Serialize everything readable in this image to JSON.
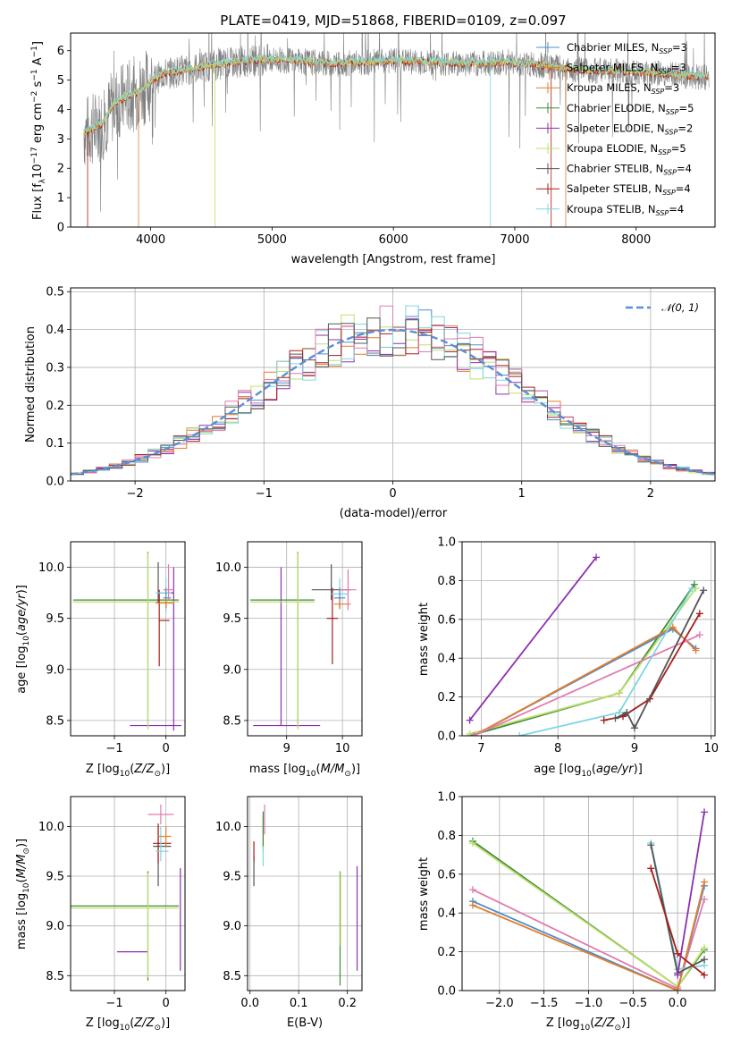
{
  "title": "PLATE=0419, MJD=51868, FIBERID=0109, z=0.097",
  "colors": {
    "Chabrier MILES": "#4c8dcc",
    "Salpeter MILES": "#e57c2a",
    "Kroupa MILES": "#e57c2a",
    "Chabrier ELODIE": "#3d8a3d",
    "Salpeter ELODIE": "#8e2fb0",
    "Kroupa ELODIE": "#bfe06a",
    "Chabrier STELIB": "#555555",
    "Salpeter STELIB": "#a61d1d",
    "Kroupa STELIB": "#7fd6e0",
    "pink": "#e07bb0",
    "normal": "#5b8fd6"
  },
  "panel_labels": {
    "spectrum": {
      "xlabel": "wavelength [Angstrom, rest frame]",
      "ylabel": "Flux [f",
      "ylabel_sub": "λ",
      "ylabel_rest": "10",
      "ylabel_exp": "−17",
      "ylabel_tail": " erg cm",
      "ylabel_exp2": "−2",
      "ylabel_tail2": " s",
      "ylabel_exp3": "−1",
      "ylabel_tail3": " A",
      "ylabel_exp4": "−1",
      "ylabel_end": "]"
    },
    "residuals": {
      "xlabel": "(data-model)/error",
      "ylabel": "Normed distribution",
      "legend": "𝒩(0, 1)"
    },
    "age_z": {
      "xlabel": "Z [log",
      "xlabel_sub": "10",
      "xlabel_rest": "(Z/Z",
      "xlabel_sun": "⊙",
      "xlabel_end": ")]",
      "ylabel": "age  [log",
      "ylabel_sub": "10",
      "ylabel_rest": "(age/yr)]"
    },
    "age_mass": {
      "xlabel": "mass [log",
      "xlabel_sub": "10",
      "xlabel_rest": "(M/M",
      "xlabel_sun": "⊙",
      "xlabel_end": ")]"
    },
    "mw_age": {
      "xlabel": "age  [log",
      "xlabel_sub": "10",
      "xlabel_rest": "(age/yr)]",
      "ylabel": "mass weight"
    },
    "mass_z": {
      "xlabel": "Z [log",
      "xlabel_sub": "10",
      "xlabel_rest": "(Z/Z",
      "xlabel_sun": "⊙",
      "xlabel_end": ")]",
      "ylabel": "mass [log",
      "ylabel_sub": "10",
      "ylabel_rest": "(M/M",
      "ylabel_sun": "⊙",
      "ylabel_end": ")]"
    },
    "mass_ebv": {
      "xlabel": "E(B-V)"
    },
    "mw_z": {
      "xlabel": "Z [log",
      "xlabel_sub": "10",
      "xlabel_rest": "(Z/Z",
      "xlabel_sun": "⊙",
      "xlabel_end": ")]",
      "ylabel": "mass weight"
    }
  },
  "chart_data": [
    {
      "type": "line",
      "xlim": [
        3340,
        8650
      ],
      "ylim": [
        0,
        6.6
      ],
      "xticks": [
        4000,
        5000,
        6000,
        7000,
        8000
      ],
      "yticks": [
        0,
        1,
        2,
        3,
        4,
        5,
        6
      ],
      "grid": false,
      "legend_position": "right",
      "legend": [
        {
          "name": "Chabrier MILES",
          "nssp": "3"
        },
        {
          "name": "Salpeter MILES",
          "nssp": "3"
        },
        {
          "name": "Kroupa MILES",
          "nssp": "3"
        },
        {
          "name": "Chabrier ELODIE",
          "nssp": "5"
        },
        {
          "name": "Salpeter ELODIE",
          "nssp": "2"
        },
        {
          "name": "Kroupa ELODIE",
          "nssp": "5"
        },
        {
          "name": "Chabrier STELIB",
          "nssp": "4"
        },
        {
          "name": "Salpeter STELIB",
          "nssp": "4"
        },
        {
          "name": "Kroupa STELIB",
          "nssp": "4"
        }
      ],
      "continuum": {
        "x": [
          3450,
          3600,
          3700,
          3800,
          3900,
          4000,
          4100,
          4300,
          4500,
          4800,
          5000,
          5200,
          5500,
          5800,
          6000,
          6300,
          6600,
          6900,
          7200,
          7500,
          7800,
          8100,
          8400,
          8600
        ],
        "y": [
          3.2,
          3.5,
          4.2,
          4.4,
          4.6,
          4.9,
          5.2,
          5.35,
          5.5,
          5.65,
          5.7,
          5.65,
          5.55,
          5.6,
          5.65,
          5.6,
          5.55,
          5.6,
          5.5,
          5.35,
          5.3,
          5.25,
          5.15,
          5.1
        ]
      }
    },
    {
      "type": "bar",
      "xlim": [
        -2.5,
        2.5
      ],
      "ylim": [
        0,
        0.51
      ],
      "xticks": [
        -2,
        -1,
        0,
        1,
        2
      ],
      "yticks": [
        0.0,
        0.1,
        0.2,
        0.3,
        0.4,
        0.5
      ],
      "grid": true,
      "legend_position": "top-right",
      "bin_width": 0.1,
      "normal_mean": 0,
      "normal_sigma": 1
    },
    {
      "type": "scatter",
      "xlim": [
        -1.85,
        0.37
      ],
      "ylim": [
        8.35,
        10.25
      ],
      "xticks": [
        -1,
        0
      ],
      "yticks": [
        8.5,
        9.0,
        9.5,
        10.0
      ],
      "grid": true,
      "points": [
        {
          "model": "Salpeter ELODIE",
          "x": -0.35,
          "xerr": [
            0.35,
            0.65
          ],
          "y": 8.45,
          "yerr": [
            0.0,
            0.0
          ]
        },
        {
          "model": "Salpeter ELODIE",
          "x": 0.15,
          "xerr": [
            0.0,
            0.0
          ],
          "y": 9.2,
          "yerr": [
            0.8,
            0.8
          ]
        },
        {
          "model": "Chabrier ELODIE",
          "x": -0.35,
          "xerr": [
            1.45,
            0.6
          ],
          "y": 9.68,
          "yerr": [
            1.25,
            0.47
          ]
        },
        {
          "model": "Kroupa ELODIE",
          "x": -0.35,
          "xerr": [
            1.45,
            0.6
          ],
          "y": 9.66,
          "yerr": [
            1.25,
            0.48
          ]
        },
        {
          "model": "Chabrier STELIB",
          "x": -0.15,
          "xerr": [
            0.0,
            0.3
          ],
          "y": 9.75,
          "yerr": [
            0.1,
            0.3
          ]
        },
        {
          "model": "Salpeter STELIB",
          "x": -0.13,
          "xerr": [
            0.0,
            0.2
          ],
          "y": 9.48,
          "yerr": [
            0.45,
            0.3
          ]
        },
        {
          "model": "Kroupa STELIB",
          "x": 0.0,
          "xerr": [
            0.2,
            0.1
          ],
          "y": 9.75,
          "yerr": [
            0.2,
            0.15
          ]
        },
        {
          "model": "Chabrier MILES",
          "x": 0.0,
          "xerr": [
            0.05,
            0.1
          ],
          "y": 9.7,
          "yerr": [
            0.1,
            0.1
          ]
        },
        {
          "model": "Salpeter MILES",
          "x": 0.0,
          "xerr": [
            0.2,
            0.15
          ],
          "y": 9.65,
          "yerr": [
            0.05,
            0.05
          ]
        },
        {
          "model": "pink",
          "x": 0.05,
          "xerr": [
            0.1,
            0.1
          ],
          "y": 9.78,
          "yerr": [
            0.1,
            0.25
          ]
        }
      ]
    },
    {
      "type": "scatter",
      "xlim": [
        8.3,
        10.35
      ],
      "ylim": [
        8.35,
        10.25
      ],
      "xticks": [
        9,
        10
      ],
      "yticks": [
        8.5,
        9.0,
        9.5,
        10.0
      ],
      "grid": true,
      "points": [
        {
          "model": "Salpeter ELODIE",
          "x": 8.9,
          "xerr": [
            0.5,
            0.7
          ],
          "y": 8.45,
          "yerr": [
            0.0,
            1.55
          ]
        },
        {
          "model": "Chabrier ELODIE",
          "x": 9.2,
          "xerr": [
            0.85,
            0.3
          ],
          "y": 9.68,
          "yerr": [
            1.25,
            0.47
          ]
        },
        {
          "model": "Kroupa ELODIE",
          "x": 9.2,
          "xerr": [
            0.85,
            0.3
          ],
          "y": 9.66,
          "yerr": [
            1.25,
            0.48
          ]
        },
        {
          "model": "Chabrier STELIB",
          "x": 9.8,
          "xerr": [
            0.35,
            0.35
          ],
          "y": 9.78,
          "yerr": [
            0.1,
            0.25
          ]
        },
        {
          "model": "Salpeter STELIB",
          "x": 9.82,
          "xerr": [
            0.1,
            0.1
          ],
          "y": 9.5,
          "yerr": [
            0.45,
            0.3
          ]
        },
        {
          "model": "Kroupa STELIB",
          "x": 9.95,
          "xerr": [
            0.15,
            0.15
          ],
          "y": 9.74,
          "yerr": [
            0.15,
            0.15
          ]
        },
        {
          "model": "Chabrier MILES",
          "x": 9.95,
          "xerr": [
            0.1,
            0.1
          ],
          "y": 9.7,
          "yerr": [
            0.1,
            0.1
          ]
        },
        {
          "model": "Salpeter MILES",
          "x": 9.95,
          "xerr": [
            0.1,
            0.2
          ],
          "y": 9.64,
          "yerr": [
            0.05,
            0.05
          ]
        },
        {
          "model": "pink",
          "x": 10.1,
          "xerr": [
            0.15,
            0.15
          ],
          "y": 9.78,
          "yerr": [
            0.2,
            0.2
          ]
        }
      ]
    },
    {
      "type": "line",
      "xlim": [
        6.75,
        10.05
      ],
      "ylim": [
        0,
        1.0
      ],
      "xticks": [
        7,
        8,
        9,
        10
      ],
      "yticks": [
        0.0,
        0.2,
        0.4,
        0.6,
        0.8,
        1.0
      ],
      "grid": true,
      "series": [
        {
          "model": "Salpeter ELODIE",
          "x": [
            6.85,
            8.5
          ],
          "y": [
            0.08,
            0.92
          ]
        },
        {
          "model": "Chabrier ELODIE",
          "x": [
            6.85,
            8.8,
            9.78
          ],
          "y": [
            0.0,
            0.22,
            0.78
          ]
        },
        {
          "model": "Kroupa ELODIE",
          "x": [
            6.85,
            8.8,
            9.8
          ],
          "y": [
            0.01,
            0.22,
            0.76
          ]
        },
        {
          "model": "Chabrier MILES",
          "x": [
            6.9,
            9.5,
            9.8
          ],
          "y": [
            0.0,
            0.55,
            0.45
          ]
        },
        {
          "model": "Salpeter MILES",
          "x": [
            6.9,
            9.5,
            9.8
          ],
          "y": [
            0.0,
            0.56,
            0.44
          ]
        },
        {
          "model": "pink",
          "x": [
            6.9,
            9.85
          ],
          "y": [
            0.0,
            0.52
          ]
        },
        {
          "model": "Kroupa STELIB",
          "x": [
            7.5,
            8.8,
            9.75
          ],
          "y": [
            0.0,
            0.12,
            0.76
          ]
        },
        {
          "model": "Salpeter STELIB",
          "x": [
            8.6,
            8.85,
            9.2,
            9.85
          ],
          "y": [
            0.08,
            0.1,
            0.19,
            0.63
          ]
        },
        {
          "model": "Chabrier STELIB",
          "x": [
            8.75,
            8.9,
            9.0,
            9.9
          ],
          "y": [
            0.09,
            0.12,
            0.04,
            0.75
          ]
        }
      ]
    },
    {
      "type": "scatter",
      "xlim": [
        -1.85,
        0.37
      ],
      "ylim": [
        8.35,
        10.3
      ],
      "xticks": [
        -1,
        0
      ],
      "yticks": [
        8.5,
        9.0,
        9.5,
        10.0
      ],
      "grid": true,
      "points": [
        {
          "model": "Salpeter ELODIE",
          "x": -0.35,
          "xerr": [
            0.6,
            0.0
          ],
          "y": 8.74,
          "yerr": [
            0.0,
            0.0
          ]
        },
        {
          "model": "Salpeter ELODIE",
          "x": 0.28,
          "xerr": [
            0.0,
            0.0
          ],
          "y": 9.2,
          "yerr": [
            0.65,
            0.38
          ]
        },
        {
          "model": "Chabrier ELODIE",
          "x": -0.35,
          "xerr": [
            1.5,
            0.6
          ],
          "y": 9.2,
          "yerr": [
            0.75,
            0.35
          ]
        },
        {
          "model": "Kroupa ELODIE",
          "x": -0.35,
          "xerr": [
            1.5,
            0.6
          ],
          "y": 9.18,
          "yerr": [
            0.7,
            0.35
          ]
        },
        {
          "model": "Chabrier STELIB",
          "x": -0.15,
          "xerr": [
            0.1,
            0.25
          ],
          "y": 9.8,
          "yerr": [
            0.4,
            0.2
          ]
        },
        {
          "model": "Salpeter STELIB",
          "x": -0.15,
          "xerr": [
            0.1,
            0.25
          ],
          "y": 9.83,
          "yerr": [
            0.2,
            0.2
          ]
        },
        {
          "model": "Kroupa STELIB",
          "x": -0.1,
          "xerr": [
            0.1,
            0.15
          ],
          "y": 9.75,
          "yerr": [
            0.1,
            0.25
          ]
        },
        {
          "model": "Salpeter MILES",
          "x": 0.0,
          "xerr": [
            0.15,
            0.1
          ],
          "y": 9.9,
          "yerr": [
            0.1,
            0.1
          ]
        },
        {
          "model": "pink",
          "x": -0.1,
          "xerr": [
            0.25,
            0.25
          ],
          "y": 10.12,
          "yerr": [
            0.1,
            0.1
          ]
        }
      ]
    },
    {
      "type": "scatter",
      "xlim": [
        -0.005,
        0.23
      ],
      "ylim": [
        8.35,
        10.3
      ],
      "xticks": [
        0.0,
        0.1,
        0.2
      ],
      "yticks": [
        8.5,
        9.0,
        9.5,
        10.0
      ],
      "grid": true,
      "points": [
        {
          "model": "Chabrier STELIB",
          "x": 0.008,
          "xerr": [
            0,
            0
          ],
          "y": 9.55,
          "yerr": [
            0.15,
            0.15
          ]
        },
        {
          "model": "Salpeter STELIB",
          "x": 0.008,
          "xerr": [
            0,
            0
          ],
          "y": 9.75,
          "yerr": [
            0.1,
            0.1
          ]
        },
        {
          "model": "Salpeter MILES",
          "x": 0.027,
          "xerr": [
            0,
            0
          ],
          "y": 9.95,
          "yerr": [
            0.15,
            0.15
          ]
        },
        {
          "model": "Chabrier ELODIE",
          "x": 0.027,
          "xerr": [
            0,
            0
          ],
          "y": 9.95,
          "yerr": [
            0.2,
            0.2
          ]
        },
        {
          "model": "Kroupa STELIB",
          "x": 0.027,
          "xerr": [
            0,
            0
          ],
          "y": 9.7,
          "yerr": [
            0.1,
            0.1
          ]
        },
        {
          "model": "pink",
          "x": 0.03,
          "xerr": [
            0,
            0
          ],
          "y": 10.07,
          "yerr": [
            0.15,
            0.15
          ]
        },
        {
          "model": "Chabrier ELODIE",
          "x": 0.185,
          "xerr": [
            0,
            0
          ],
          "y": 9.0,
          "yerr": [
            0.6,
            0.55
          ]
        },
        {
          "model": "Kroupa ELODIE",
          "x": 0.186,
          "xerr": [
            0,
            0
          ],
          "y": 9.2,
          "yerr": [
            0.4,
            0.35
          ]
        },
        {
          "model": "Salpeter ELODIE",
          "x": 0.22,
          "xerr": [
            0,
            0
          ],
          "y": 9.05,
          "yerr": [
            0.5,
            0.55
          ]
        }
      ]
    },
    {
      "type": "line",
      "xlim": [
        -2.42,
        0.42
      ],
      "ylim": [
        0,
        1.0
      ],
      "xticks": [
        -2.0,
        -1.5,
        -1.0,
        -0.5,
        0.0
      ],
      "yticks": [
        0.0,
        0.2,
        0.4,
        0.6,
        0.8,
        1.0
      ],
      "grid": true,
      "series": [
        {
          "model": "Chabrier ELODIE",
          "x": [
            -2.3,
            0.0,
            0.3
          ],
          "y": [
            0.77,
            0.02,
            0.21
          ]
        },
        {
          "model": "Kroupa ELODIE",
          "x": [
            -2.3,
            0.0,
            0.3
          ],
          "y": [
            0.76,
            0.02,
            0.22
          ]
        },
        {
          "model": "pink",
          "x": [
            -2.3,
            0.0,
            0.3
          ],
          "y": [
            0.52,
            0.01,
            0.47
          ]
        },
        {
          "model": "Chabrier MILES",
          "x": [
            -2.3,
            0.0,
            0.3
          ],
          "y": [
            0.46,
            0.0,
            0.54
          ]
        },
        {
          "model": "Salpeter MILES",
          "x": [
            -2.3,
            0.0,
            0.3
          ],
          "y": [
            0.44,
            0.0,
            0.56
          ]
        },
        {
          "model": "Kroupa STELIB",
          "x": [
            -0.3,
            0.0,
            0.3
          ],
          "y": [
            0.76,
            0.11,
            0.13
          ]
        },
        {
          "model": "Chabrier STELIB",
          "x": [
            -0.3,
            0.0,
            0.3
          ],
          "y": [
            0.75,
            0.09,
            0.16
          ]
        },
        {
          "model": "Salpeter STELIB",
          "x": [
            -0.3,
            0.0,
            0.3
          ],
          "y": [
            0.63,
            0.19,
            0.08
          ]
        },
        {
          "model": "Salpeter ELODIE",
          "x": [
            0.0,
            0.3
          ],
          "y": [
            0.08,
            0.92
          ]
        }
      ]
    }
  ]
}
